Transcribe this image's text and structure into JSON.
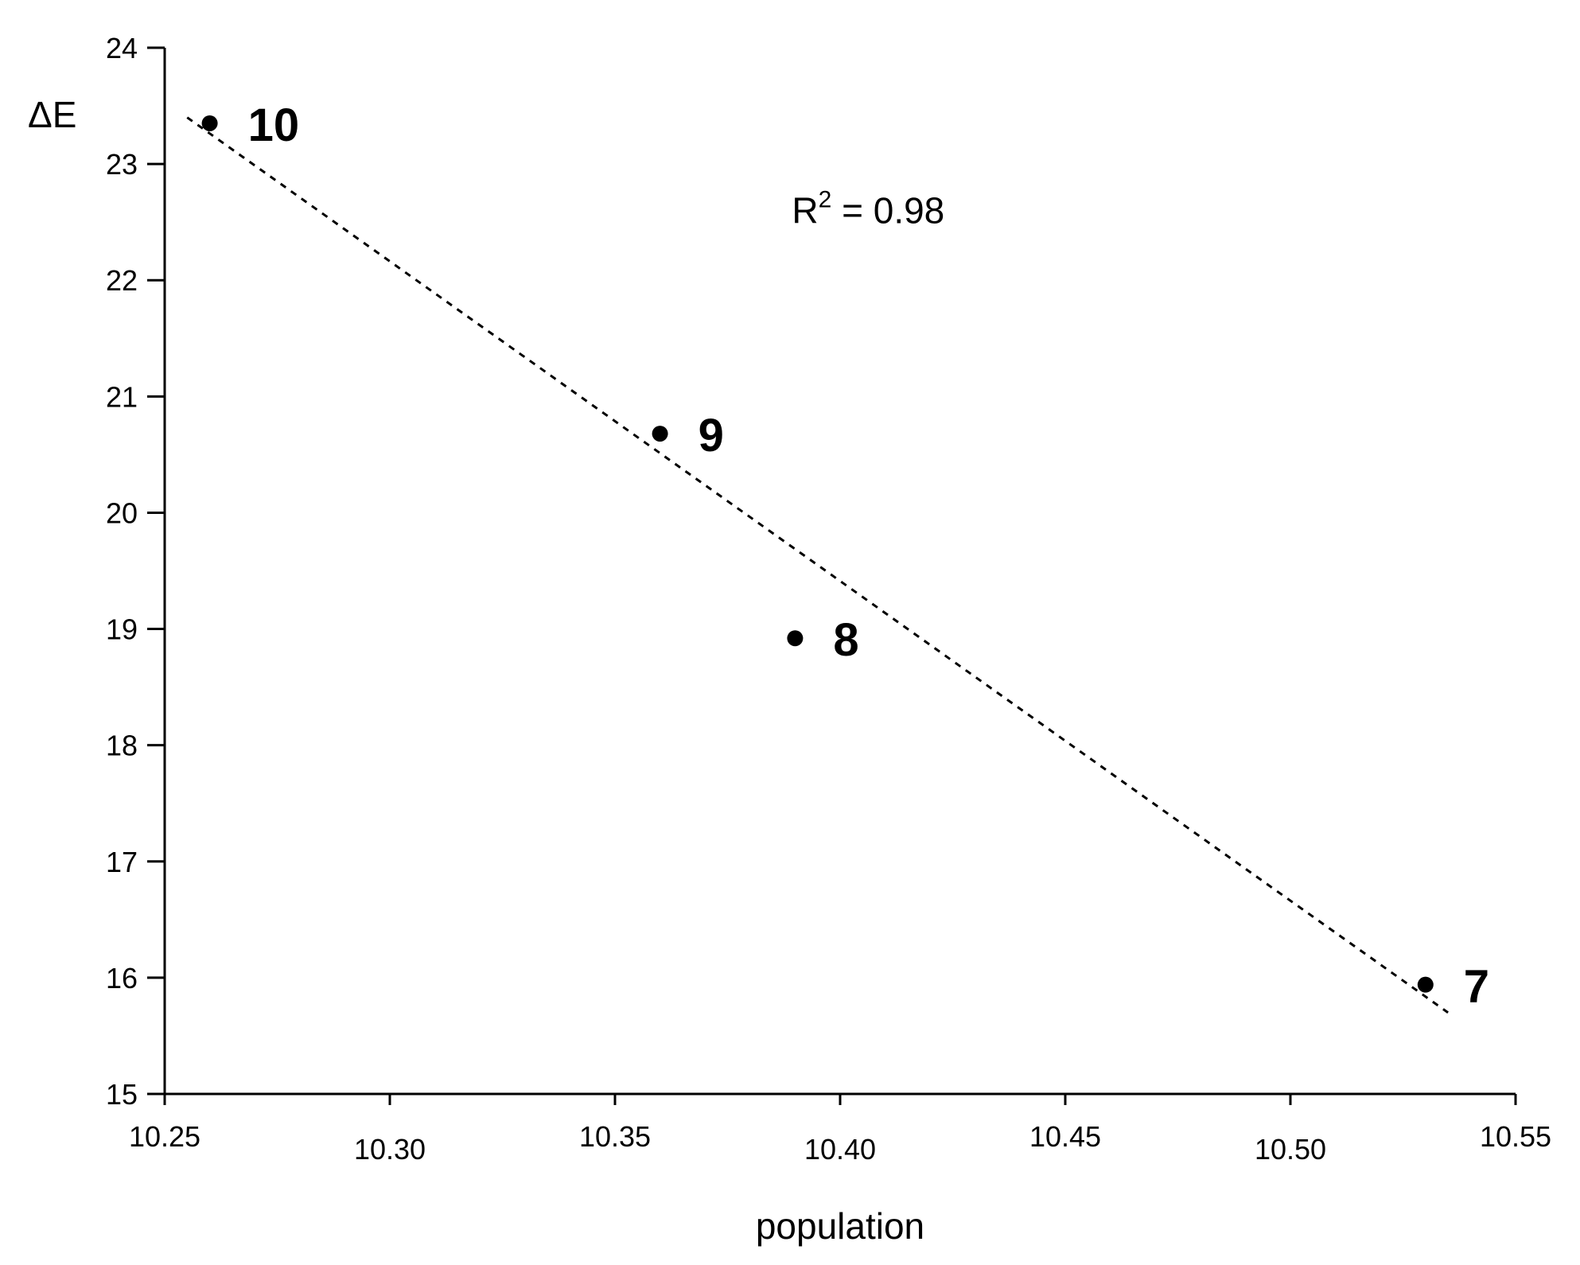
{
  "chart_data": {
    "type": "scatter",
    "title": "",
    "xlabel": "population",
    "ylabel": "ΔE",
    "xlim": [
      10.25,
      10.55
    ],
    "ylim": [
      15,
      24
    ],
    "x_ticks": [
      "10.25",
      "10.30",
      "10.35",
      "10.40",
      "10.45",
      "10.50",
      "10.55"
    ],
    "y_ticks": [
      "15",
      "16",
      "17",
      "18",
      "19",
      "20",
      "21",
      "22",
      "23",
      "24"
    ],
    "grid": false,
    "series": [
      {
        "points": [
          {
            "label": "10",
            "x": 10.26,
            "y": 23.35
          },
          {
            "label": "9",
            "x": 10.36,
            "y": 20.68
          },
          {
            "label": "8",
            "x": 10.39,
            "y": 18.92
          },
          {
            "label": "7",
            "x": 10.53,
            "y": 15.94
          }
        ]
      }
    ],
    "trendline": {
      "style": "dotted",
      "x": [
        10.255,
        10.535
      ],
      "y": [
        23.4,
        15.7
      ]
    },
    "annotation": {
      "text_base": "R",
      "superscript": "2",
      "text_rest": " = 0.98",
      "x": 10.39,
      "y": 22.6
    }
  }
}
